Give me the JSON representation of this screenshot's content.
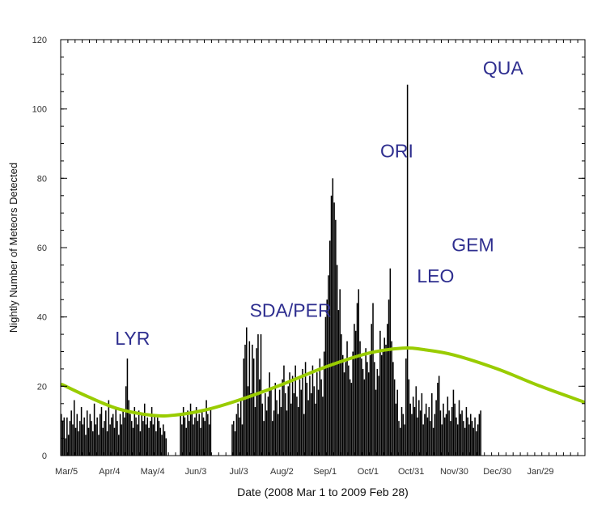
{
  "chart_data": {
    "type": "bar",
    "title": "",
    "xlabel": "Date (2008 Mar 1 to 2009 Feb 28)",
    "ylabel": "Nightly Number of Meteors Detected",
    "ylim": [
      0,
      120
    ],
    "yticks": [
      0,
      20,
      40,
      60,
      80,
      100,
      120
    ],
    "x_start": "2008-03-01",
    "x_end": "2009-02-28",
    "xticks": [
      {
        "date": "2008-03-05",
        "label": "Mar/5"
      },
      {
        "date": "2008-04-04",
        "label": "Apr/4"
      },
      {
        "date": "2008-05-04",
        "label": "May/4"
      },
      {
        "date": "2008-06-03",
        "label": "Jun/3"
      },
      {
        "date": "2008-07-03",
        "label": "Jul/3"
      },
      {
        "date": "2008-08-02",
        "label": "Aug/2"
      },
      {
        "date": "2008-09-01",
        "label": "Sep/1"
      },
      {
        "date": "2008-10-01",
        "label": "Oct/1"
      },
      {
        "date": "2008-10-31",
        "label": "Oct/31"
      },
      {
        "date": "2008-11-30",
        "label": "Nov/30"
      },
      {
        "date": "2008-12-30",
        "label": "Dec/30"
      },
      {
        "date": "2009-01-29",
        "label": "Jan/29"
      }
    ],
    "bar_color": "#000000",
    "curve_color": "#99cc00",
    "label_color": "#2e2e8f",
    "shower_labels": [
      {
        "text": "LYR",
        "date": "2008-04-20",
        "y": 32
      },
      {
        "text": "SDA/PER",
        "date": "2008-08-08",
        "y": 40
      },
      {
        "text": "ORI",
        "date": "2008-10-21",
        "y": 86
      },
      {
        "text": "LEO",
        "date": "2008-11-17",
        "y": 50
      },
      {
        "text": "GEM",
        "date": "2008-12-13",
        "y": 59
      },
      {
        "text": "QUA",
        "date": "2009-01-03",
        "y": 110
      }
    ],
    "trend_curve": [
      {
        "date": "2008-03-02",
        "value": 20.5
      },
      {
        "date": "2008-03-20",
        "value": 17
      },
      {
        "date": "2008-04-10",
        "value": 13.5
      },
      {
        "date": "2008-05-04",
        "value": 11.6
      },
      {
        "date": "2008-05-20",
        "value": 11.7
      },
      {
        "date": "2008-06-10",
        "value": 13.2
      },
      {
        "date": "2008-07-03",
        "value": 16
      },
      {
        "date": "2008-08-02",
        "value": 20.5
      },
      {
        "date": "2008-09-01",
        "value": 25.5
      },
      {
        "date": "2008-10-01",
        "value": 29.5
      },
      {
        "date": "2008-10-25",
        "value": 31
      },
      {
        "date": "2008-11-10",
        "value": 30.5
      },
      {
        "date": "2008-11-30",
        "value": 29
      },
      {
        "date": "2008-12-30",
        "value": 25
      },
      {
        "date": "2009-01-29",
        "value": 20
      },
      {
        "date": "2009-02-28",
        "value": 15.5
      }
    ],
    "series": [
      {
        "start_date": "2008-03-01",
        "values": [
          12,
          10,
          11,
          5,
          11,
          6,
          10,
          13,
          9,
          16,
          8,
          12,
          7,
          10,
          14,
          9,
          11,
          6,
          13,
          8,
          12,
          10,
          7,
          15,
          9,
          11,
          6,
          12,
          14,
          8,
          10,
          13,
          7,
          16,
          9,
          11,
          12,
          8,
          14,
          10,
          6,
          12,
          9,
          13,
          11,
          20,
          28,
          16,
          12,
          10,
          8,
          14,
          11,
          9,
          13,
          7,
          12,
          10,
          15,
          9,
          11,
          8,
          10,
          14,
          9,
          12,
          7,
          11,
          10,
          8,
          6,
          9,
          7,
          5,
          0,
          0,
          0,
          0,
          0,
          0,
          0,
          0,
          0,
          12,
          9,
          14,
          11,
          8,
          13,
          10,
          15,
          12,
          9,
          11,
          14,
          10,
          12,
          8,
          13,
          11,
          10,
          16,
          12,
          9,
          14,
          0,
          0,
          0,
          0,
          0,
          0,
          0,
          0,
          0,
          0,
          0,
          0,
          0,
          0,
          9,
          10,
          7,
          12,
          15,
          11,
          16,
          9,
          28,
          32,
          37,
          20,
          33,
          18,
          32,
          28,
          14,
          31,
          35,
          22,
          35,
          15,
          10,
          18,
          13,
          17,
          24,
          19,
          10,
          13,
          21,
          16,
          12,
          19,
          14,
          22,
          26,
          18,
          13,
          20,
          24,
          15,
          23,
          18,
          26,
          17,
          14,
          22,
          19,
          25,
          12,
          27,
          21,
          16,
          23,
          18,
          26,
          20,
          15,
          24,
          19,
          28,
          22,
          17,
          30,
          40,
          45,
          52,
          62,
          75,
          80,
          73,
          68,
          55,
          42,
          48,
          35,
          29,
          24,
          27,
          33,
          26,
          22,
          21,
          30,
          38,
          36,
          44,
          48,
          33,
          28,
          25,
          22,
          31,
          27,
          24,
          29,
          38,
          44,
          27,
          19,
          25,
          23,
          36,
          29,
          30,
          34,
          32,
          38,
          45,
          54,
          33,
          27,
          22,
          15,
          19,
          10,
          8,
          14,
          12,
          9,
          28,
          107,
          22,
          15,
          12,
          17,
          14,
          20,
          11,
          16,
          13,
          18,
          9,
          12,
          15,
          11,
          14,
          10,
          18,
          8,
          12,
          16,
          21,
          23,
          13,
          9,
          15,
          11,
          12,
          17,
          13,
          10,
          14,
          19,
          15,
          11,
          9,
          16,
          12,
          13,
          10,
          8,
          14,
          11,
          9,
          12,
          10,
          8,
          11,
          7,
          9,
          12,
          13
        ]
      }
    ]
  }
}
